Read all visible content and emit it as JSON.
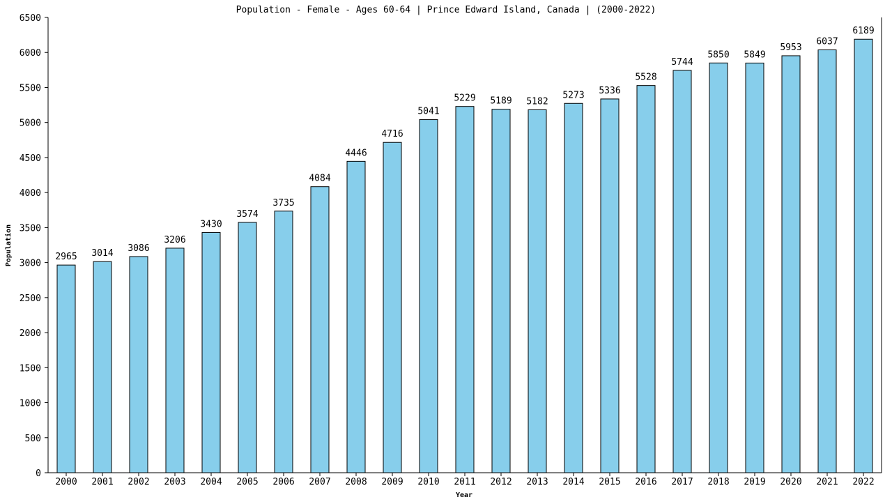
{
  "chart_data": {
    "type": "bar",
    "title": "Population - Female - Ages 60-64 | Prince Edward Island, Canada |  (2000-2022)",
    "xlabel": "Year",
    "ylabel": "Population",
    "ylim": [
      0,
      6500
    ],
    "ytick_step": 500,
    "categories": [
      "2000",
      "2001",
      "2002",
      "2003",
      "2004",
      "2005",
      "2006",
      "2007",
      "2008",
      "2009",
      "2010",
      "2011",
      "2012",
      "2013",
      "2014",
      "2015",
      "2016",
      "2017",
      "2018",
      "2019",
      "2020",
      "2021",
      "2022"
    ],
    "values": [
      2965,
      3014,
      3086,
      3206,
      3430,
      3574,
      3735,
      4084,
      4446,
      4716,
      5041,
      5229,
      5189,
      5182,
      5273,
      5336,
      5528,
      5744,
      5850,
      5849,
      5953,
      6037,
      6189
    ],
    "bar_color": "#87ceeb",
    "bar_stroke": "#000000",
    "grid": false,
    "legend": "none"
  }
}
